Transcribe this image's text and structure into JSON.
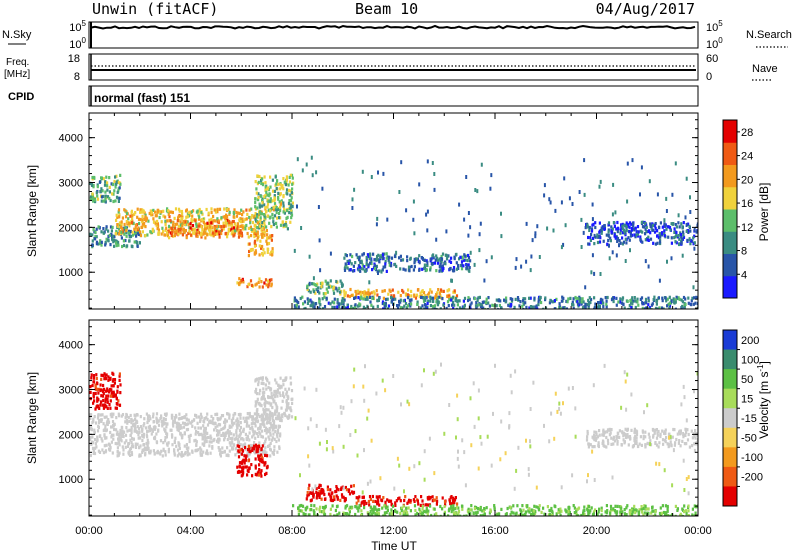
{
  "header": {
    "radar": "Unwin (fitACF)",
    "beam": "Beam 10",
    "date": "04/Aug/2017"
  },
  "panels": {
    "nsky": {
      "left_label": "N.Sky",
      "tick_top": "10^5",
      "tick_bottom": "10^0",
      "right_label": "N.Search",
      "right_tick_top": "10^5",
      "right_tick_bottom": "10^0"
    },
    "freq": {
      "left_label_1": "Freq.",
      "left_label_2": "[MHz]",
      "tick_top": "18",
      "tick_bottom": "8",
      "right_tick_top": "60",
      "right_tick_bottom": "0",
      "right_label": "Nave"
    },
    "cpid": {
      "left_label": "CPID",
      "text": "normal (fast) 151"
    }
  },
  "chart_data": [
    {
      "type": "heatmap",
      "name": "power",
      "ylabel": "Slant Range [km]",
      "ylim": [
        180,
        4550
      ],
      "yticks": [
        "1000",
        "2000",
        "3000",
        "4000"
      ],
      "ytick_values": [
        1000,
        2000,
        3000,
        4000
      ],
      "xlim": [
        0,
        24
      ],
      "colorbar_label": "Power [dB]",
      "colorbar_ticks": [
        "4",
        "8",
        "12",
        "16",
        "20",
        "24",
        "28"
      ],
      "colorbar_range": [
        0,
        30
      ],
      "colors": [
        "#1a1aff",
        "#2855a8",
        "#3a8c82",
        "#5cbe6a",
        "#f0d23c",
        "#f39a1e",
        "#ef5a14",
        "#e40000"
      ],
      "echo_regions": [
        {
          "t_start": 0.0,
          "t_end": 2.0,
          "range_min": 1600,
          "range_max": 2050,
          "value": 9
        },
        {
          "t_start": 1.0,
          "t_end": 7.0,
          "range_min": 1850,
          "range_max": 2450,
          "value": 18
        },
        {
          "t_start": 3.0,
          "t_end": 6.0,
          "range_min": 1800,
          "range_max": 2200,
          "value": 22
        },
        {
          "t_start": 0.0,
          "t_end": 1.2,
          "range_min": 2600,
          "range_max": 3200,
          "value": 11
        },
        {
          "t_start": 6.5,
          "t_end": 8.0,
          "range_min": 2000,
          "range_max": 3200,
          "value": 14
        },
        {
          "t_start": 6.2,
          "t_end": 7.2,
          "range_min": 1400,
          "range_max": 1900,
          "value": 20
        },
        {
          "t_start": 5.8,
          "t_end": 7.2,
          "range_min": 700,
          "range_max": 900,
          "value": 22
        },
        {
          "t_start": 8.5,
          "t_end": 10.0,
          "range_min": 550,
          "range_max": 850,
          "value": 12
        },
        {
          "t_start": 10.0,
          "t_end": 14.5,
          "range_min": 450,
          "range_max": 650,
          "value": 20
        },
        {
          "t_start": 8.0,
          "t_end": 24.0,
          "range_min": 200,
          "range_max": 480,
          "value": 8
        },
        {
          "t_start": 10.0,
          "t_end": 15.0,
          "range_min": 1050,
          "range_max": 1450,
          "value": 7
        },
        {
          "t_start": 19.5,
          "t_end": 24.0,
          "range_min": 1650,
          "range_max": 2150,
          "value": 5
        }
      ]
    },
    {
      "type": "heatmap",
      "name": "velocity",
      "ylabel": "Slant Range [km]",
      "xlabel": "Time UT",
      "ylim": [
        180,
        4550
      ],
      "yticks": [
        "1000",
        "2000",
        "3000",
        "4000"
      ],
      "ytick_values": [
        1000,
        2000,
        3000,
        4000
      ],
      "xlim": [
        0,
        24
      ],
      "xticks": [
        "00:00",
        "04:00",
        "08:00",
        "12:00",
        "16:00",
        "20:00",
        "00:00"
      ],
      "xtick_values": [
        0,
        4,
        8,
        12,
        16,
        20,
        24
      ],
      "colorbar_label": "Velocity [m s^-1]",
      "colorbar_ticks": [
        "200",
        "100",
        "50",
        "15",
        "-15",
        "-50",
        "-100",
        "-200"
      ],
      "colors": [
        "#1a3cd6",
        "#3a8c6e",
        "#5cc044",
        "#a8dc5a",
        "#cccccc",
        "#f5d25a",
        "#f39a1e",
        "#ef5a14",
        "#e40000"
      ],
      "echo_regions": [
        {
          "t_start": 0.0,
          "t_end": 1.2,
          "range_min": 2600,
          "range_max": 3400,
          "value": -200
        },
        {
          "t_start": 0.0,
          "t_end": 7.5,
          "range_min": 1550,
          "range_max": 2500,
          "value": 0
        },
        {
          "t_start": 6.5,
          "t_end": 8.0,
          "range_min": 2300,
          "range_max": 3300,
          "value": 0
        },
        {
          "t_start": 5.8,
          "t_end": 7.0,
          "range_min": 1100,
          "range_max": 1800,
          "value": -200
        },
        {
          "t_start": 8.5,
          "t_end": 10.5,
          "range_min": 550,
          "range_max": 900,
          "value": -200
        },
        {
          "t_start": 10.5,
          "t_end": 14.5,
          "range_min": 450,
          "range_max": 650,
          "value": -200
        },
        {
          "t_start": 8.0,
          "t_end": 24.0,
          "range_min": 200,
          "range_max": 450,
          "value": 40
        },
        {
          "t_start": 19.5,
          "t_end": 24.0,
          "range_min": 1750,
          "range_max": 2150,
          "value": 0
        }
      ]
    }
  ]
}
